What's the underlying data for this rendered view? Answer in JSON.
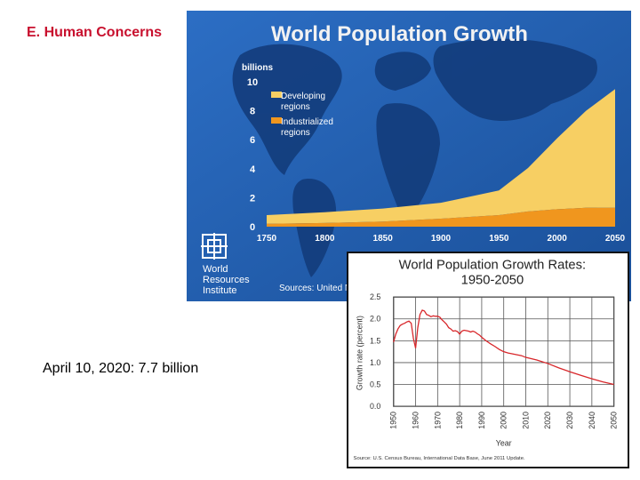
{
  "slide": {
    "section_title": "E. Human Concerns",
    "note": "April 10, 2020: 7.7 billion"
  },
  "colors": {
    "title_red": "#c8102e",
    "map_blue": "#1f5fb0",
    "developing": "#f7cf63",
    "industrialized": "#f0961e",
    "rate_line": "#d8262a"
  },
  "chart_data": [
    {
      "type": "area",
      "title": "World Population Growth",
      "ylabel": "billions",
      "x": [
        1750,
        1800,
        1850,
        1900,
        1950,
        1975,
        2000,
        2025,
        2050
      ],
      "ylim": [
        0,
        10
      ],
      "yticks": [
        0,
        2,
        4,
        6,
        8,
        10
      ],
      "xticks": [
        1750,
        1800,
        1850,
        1900,
        1950,
        2000,
        2050
      ],
      "series": [
        {
          "name": "Industrialized regions",
          "values": [
            0.2,
            0.25,
            0.35,
            0.55,
            0.8,
            1.05,
            1.2,
            1.3,
            1.3
          ]
        },
        {
          "name": "Developing regions",
          "values": [
            0.6,
            0.75,
            0.9,
            1.1,
            1.7,
            3.0,
            4.9,
            6.7,
            8.2
          ]
        }
      ],
      "legend": [
        "Developing regions",
        "Industrialized regions"
      ],
      "logo_text": "World Resources Institute",
      "source": "Sources: United Na"
    },
    {
      "type": "line",
      "title": "World Population Growth Rates: 1950-2050",
      "xlabel": "Year",
      "ylabel": "Growth rate (percent)",
      "ylim": [
        0,
        2.5
      ],
      "yticks": [
        "0.0",
        "0.5",
        "1.0",
        "1.5",
        "2.0",
        "2.5"
      ],
      "xlim": [
        1950,
        2050
      ],
      "xticks": [
        1950,
        1960,
        1970,
        1980,
        1990,
        2000,
        2010,
        2020,
        2030,
        2040,
        2050
      ],
      "points": [
        [
          1950,
          1.47
        ],
        [
          1951,
          1.65
        ],
        [
          1952,
          1.77
        ],
        [
          1953,
          1.85
        ],
        [
          1954,
          1.88
        ],
        [
          1955,
          1.9
        ],
        [
          1956,
          1.93
        ],
        [
          1957,
          1.95
        ],
        [
          1958,
          1.9
        ],
        [
          1959,
          1.55
        ],
        [
          1960,
          1.33
        ],
        [
          1961,
          1.8
        ],
        [
          1962,
          2.1
        ],
        [
          1963,
          2.2
        ],
        [
          1964,
          2.18
        ],
        [
          1965,
          2.1
        ],
        [
          1966,
          2.08
        ],
        [
          1967,
          2.05
        ],
        [
          1968,
          2.07
        ],
        [
          1969,
          2.06
        ],
        [
          1970,
          2.06
        ],
        [
          1971,
          2.04
        ],
        [
          1972,
          1.98
        ],
        [
          1973,
          1.93
        ],
        [
          1974,
          1.88
        ],
        [
          1975,
          1.8
        ],
        [
          1976,
          1.77
        ],
        [
          1977,
          1.72
        ],
        [
          1978,
          1.73
        ],
        [
          1979,
          1.71
        ],
        [
          1980,
          1.65
        ],
        [
          1981,
          1.72
        ],
        [
          1982,
          1.74
        ],
        [
          1983,
          1.73
        ],
        [
          1984,
          1.72
        ],
        [
          1985,
          1.7
        ],
        [
          1986,
          1.72
        ],
        [
          1987,
          1.7
        ],
        [
          1988,
          1.66
        ],
        [
          1989,
          1.63
        ],
        [
          1990,
          1.58
        ],
        [
          1992,
          1.5
        ],
        [
          1994,
          1.43
        ],
        [
          1996,
          1.37
        ],
        [
          1998,
          1.3
        ],
        [
          2000,
          1.25
        ],
        [
          2002,
          1.22
        ],
        [
          2004,
          1.2
        ],
        [
          2006,
          1.18
        ],
        [
          2008,
          1.16
        ],
        [
          2010,
          1.12
        ],
        [
          2015,
          1.06
        ],
        [
          2020,
          0.98
        ],
        [
          2025,
          0.88
        ],
        [
          2030,
          0.79
        ],
        [
          2035,
          0.71
        ],
        [
          2040,
          0.63
        ],
        [
          2045,
          0.56
        ],
        [
          2050,
          0.5
        ]
      ],
      "source": "Source: U.S. Census Bureau, International Data Base, June 2011 Update."
    }
  ]
}
